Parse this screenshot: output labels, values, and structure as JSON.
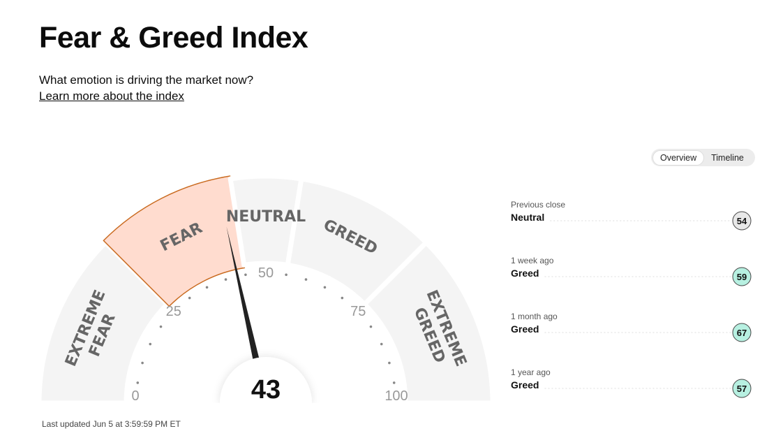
{
  "header": {
    "title": "Fear & Greed Index",
    "subtitle": "What emotion is driving the market now?",
    "link": "Learn more about the index"
  },
  "tabs": {
    "items": [
      "Overview",
      "Timeline"
    ],
    "active": 0
  },
  "gauge": {
    "value": 43,
    "min": 0,
    "max": 100,
    "ticks": [
      0,
      25,
      50,
      75,
      100
    ],
    "segments": [
      {
        "lines": [
          "EXTREME",
          "FEAR"
        ],
        "from": 0,
        "to": 25
      },
      {
        "lines": [
          "FEAR"
        ],
        "from": 25,
        "to": 45
      },
      {
        "lines": [
          "NEUTRAL"
        ],
        "from": 45,
        "to": 55
      },
      {
        "lines": [
          "GREED"
        ],
        "from": 55,
        "to": 75
      },
      {
        "lines": [
          "EXTREME",
          "GREED"
        ],
        "from": 75,
        "to": 100
      }
    ]
  },
  "updated": "Last updated Jun 5 at 3:59:59 PM ET",
  "history": [
    {
      "label": "Previous close",
      "rating": "Neutral",
      "value": 54,
      "color": "#e8e8e8"
    },
    {
      "label": "1 week ago",
      "rating": "Greed",
      "value": 59,
      "color": "#b7f0e1"
    },
    {
      "label": "1 month ago",
      "rating": "Greed",
      "value": 67,
      "color": "#b7f0e1"
    },
    {
      "label": "1 year ago",
      "rating": "Greed",
      "value": 57,
      "color": "#b7f0e1"
    }
  ]
}
